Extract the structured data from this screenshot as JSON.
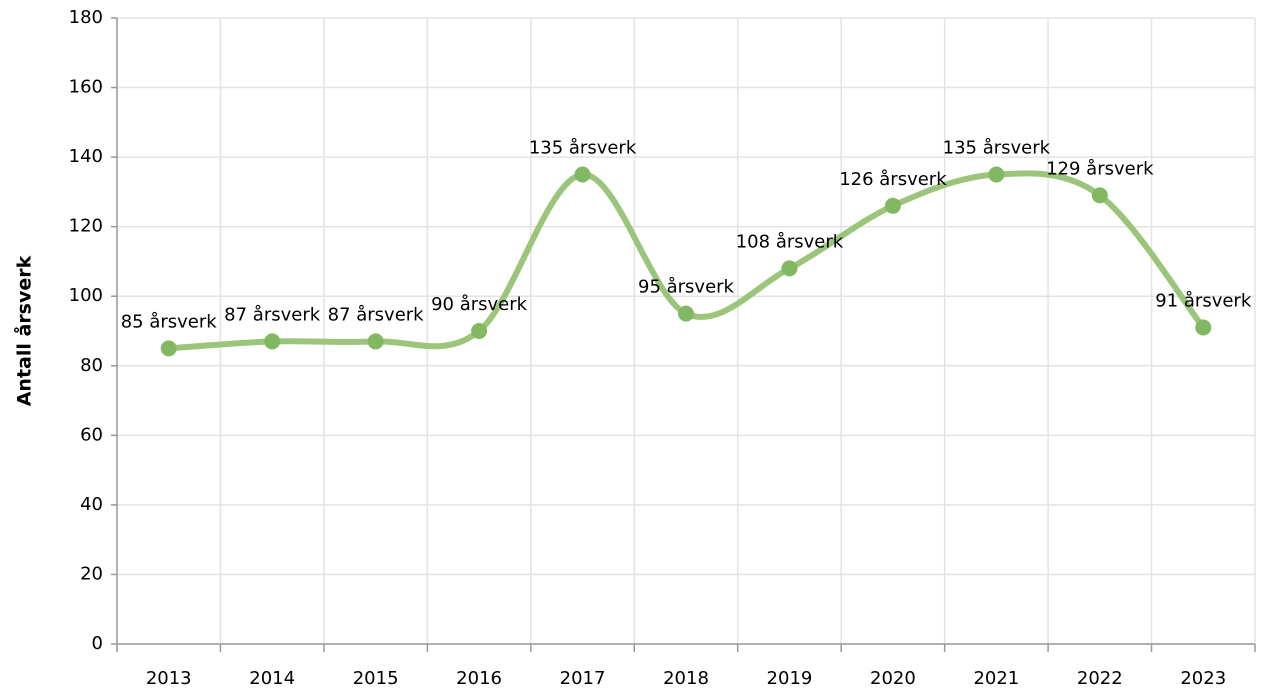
{
  "chart_data": {
    "type": "line",
    "y_label": "Antall årsverk",
    "categories": [
      "2013",
      "2014",
      "2015",
      "2016",
      "2017",
      "2018",
      "2019",
      "2020",
      "2021",
      "2022",
      "2023"
    ],
    "series": [
      {
        "name": "Antall årsverk",
        "color": "#9cc57c",
        "marker_color": "#82b861",
        "values": [
          85,
          87,
          87,
          90,
          135,
          95,
          108,
          126,
          135,
          129,
          91
        ],
        "value_labels": [
          "85 årsverk",
          "87 årsverk",
          "87 årsverk",
          "90 årsverk",
          "135 årsverk",
          "95 årsverk",
          "108 årsverk",
          "126 årsverk",
          "135 årsverk",
          "129 årsverk",
          "91 årsverk"
        ]
      }
    ],
    "ylim": [
      0,
      180
    ],
    "yticks": [
      0,
      20,
      40,
      60,
      80,
      100,
      120,
      140,
      160,
      180
    ],
    "grid": true,
    "smooth": true
  }
}
